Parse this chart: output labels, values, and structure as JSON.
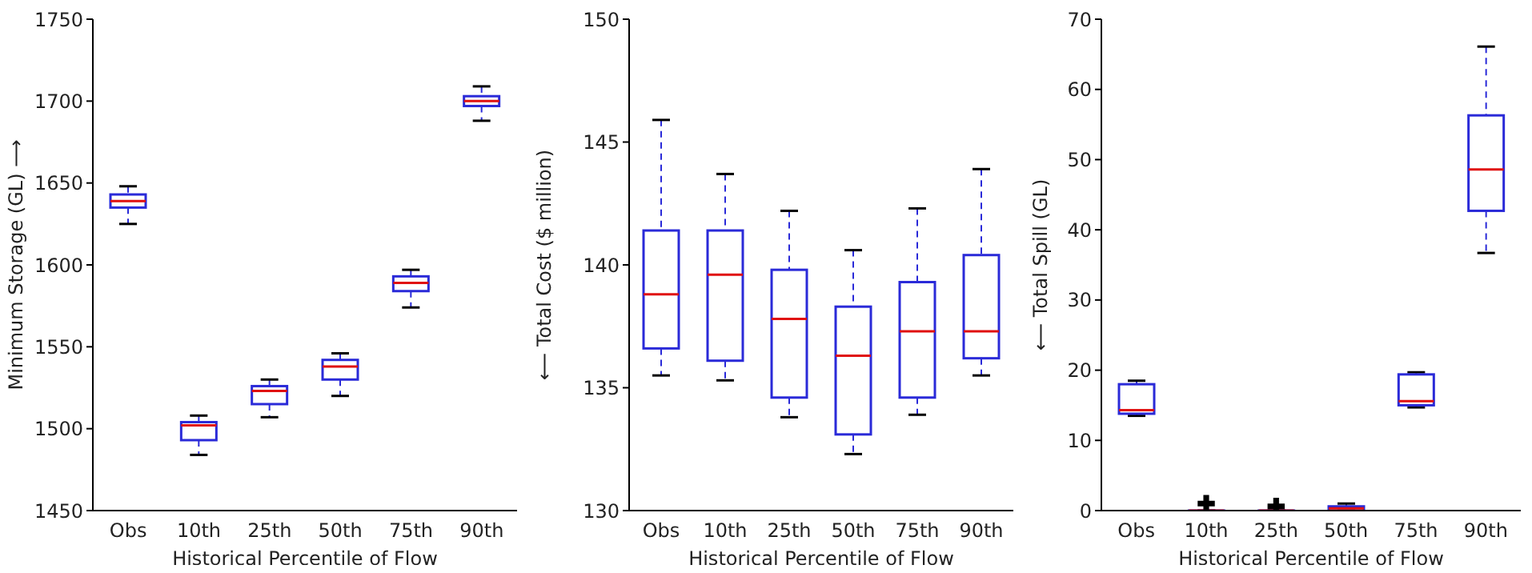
{
  "chart_data": [
    {
      "type": "box",
      "xlabel": "Historical Percentile of Flow",
      "ylabel": "Minimum Storage (GL) ⟶",
      "categories": [
        "Obs",
        "10th",
        "25th",
        "50th",
        "75th",
        "90th"
      ],
      "ylim": [
        1450,
        1750
      ],
      "yticks": [
        1450,
        1500,
        1550,
        1600,
        1650,
        1700,
        1750
      ],
      "grid": false,
      "legend": false,
      "series": [
        {
          "color": "#2a2ad8",
          "boxes": [
            {
              "low": 1625,
              "q1": 1635,
              "median": 1639,
              "q3": 1643,
              "high": 1648
            },
            {
              "low": 1484,
              "q1": 1493,
              "median": 1502,
              "q3": 1504,
              "high": 1508
            },
            {
              "low": 1507,
              "q1": 1515,
              "median": 1523,
              "q3": 1526,
              "high": 1530
            },
            {
              "low": 1520,
              "q1": 1530,
              "median": 1538,
              "q3": 1542,
              "high": 1546
            },
            {
              "low": 1574,
              "q1": 1584,
              "median": 1589,
              "q3": 1593,
              "high": 1597
            },
            {
              "low": 1688,
              "q1": 1697,
              "median": 1700,
              "q3": 1703,
              "high": 1709
            }
          ]
        }
      ]
    },
    {
      "type": "box",
      "xlabel": "Historical Percentile of Flow",
      "ylabel": "⟵ Total Cost ($ million)",
      "categories": [
        "Obs",
        "10th",
        "25th",
        "50th",
        "75th",
        "90th"
      ],
      "ylim": [
        130,
        150
      ],
      "yticks": [
        130,
        135,
        140,
        145,
        150
      ],
      "grid": false,
      "legend": false,
      "series": [
        {
          "color": "#2a2ad8",
          "boxes": [
            {
              "low": 135.5,
              "q1": 136.6,
              "median": 138.8,
              "q3": 141.4,
              "high": 145.9
            },
            {
              "low": 135.3,
              "q1": 136.1,
              "median": 139.6,
              "q3": 141.4,
              "high": 143.7
            },
            {
              "low": 133.8,
              "q1": 134.6,
              "median": 137.8,
              "q3": 139.8,
              "high": 142.2
            },
            {
              "low": 132.3,
              "q1": 133.1,
              "median": 136.3,
              "q3": 138.3,
              "high": 140.6
            },
            {
              "low": 133.9,
              "q1": 134.6,
              "median": 137.3,
              "q3": 139.3,
              "high": 142.3
            },
            {
              "low": 135.5,
              "q1": 136.2,
              "median": 137.3,
              "q3": 140.4,
              "high": 143.9
            }
          ]
        }
      ]
    },
    {
      "type": "box",
      "xlabel": "Historical Percentile of Flow",
      "ylabel": "⟵ Total Spill (GL)",
      "categories": [
        "Obs",
        "10th",
        "25th",
        "50th",
        "75th",
        "90th"
      ],
      "ylim": [
        0,
        70
      ],
      "yticks": [
        0,
        10,
        20,
        30,
        40,
        50,
        60,
        70
      ],
      "grid": false,
      "legend": false,
      "series": [
        {
          "color": "#2a2ad8",
          "boxes": [
            {
              "low": 13.5,
              "q1": 13.8,
              "median": 14.3,
              "q3": 18,
              "high": 18.5
            },
            {
              "low": 0,
              "q1": 0,
              "median": 0,
              "q3": 0,
              "high": 0,
              "outliers": [
                1
              ]
            },
            {
              "low": 0,
              "q1": 0,
              "median": 0,
              "q3": 0,
              "high": 0,
              "outliers": [
                0.6
              ]
            },
            {
              "low": 0,
              "q1": 0,
              "median": 0.3,
              "q3": 0.6,
              "high": 1
            },
            {
              "low": 14.7,
              "q1": 15,
              "median": 15.6,
              "q3": 19.4,
              "high": 19.7
            },
            {
              "low": 36.7,
              "q1": 42.7,
              "median": 48.6,
              "q3": 56.3,
              "high": 66.1
            }
          ]
        }
      ]
    }
  ]
}
